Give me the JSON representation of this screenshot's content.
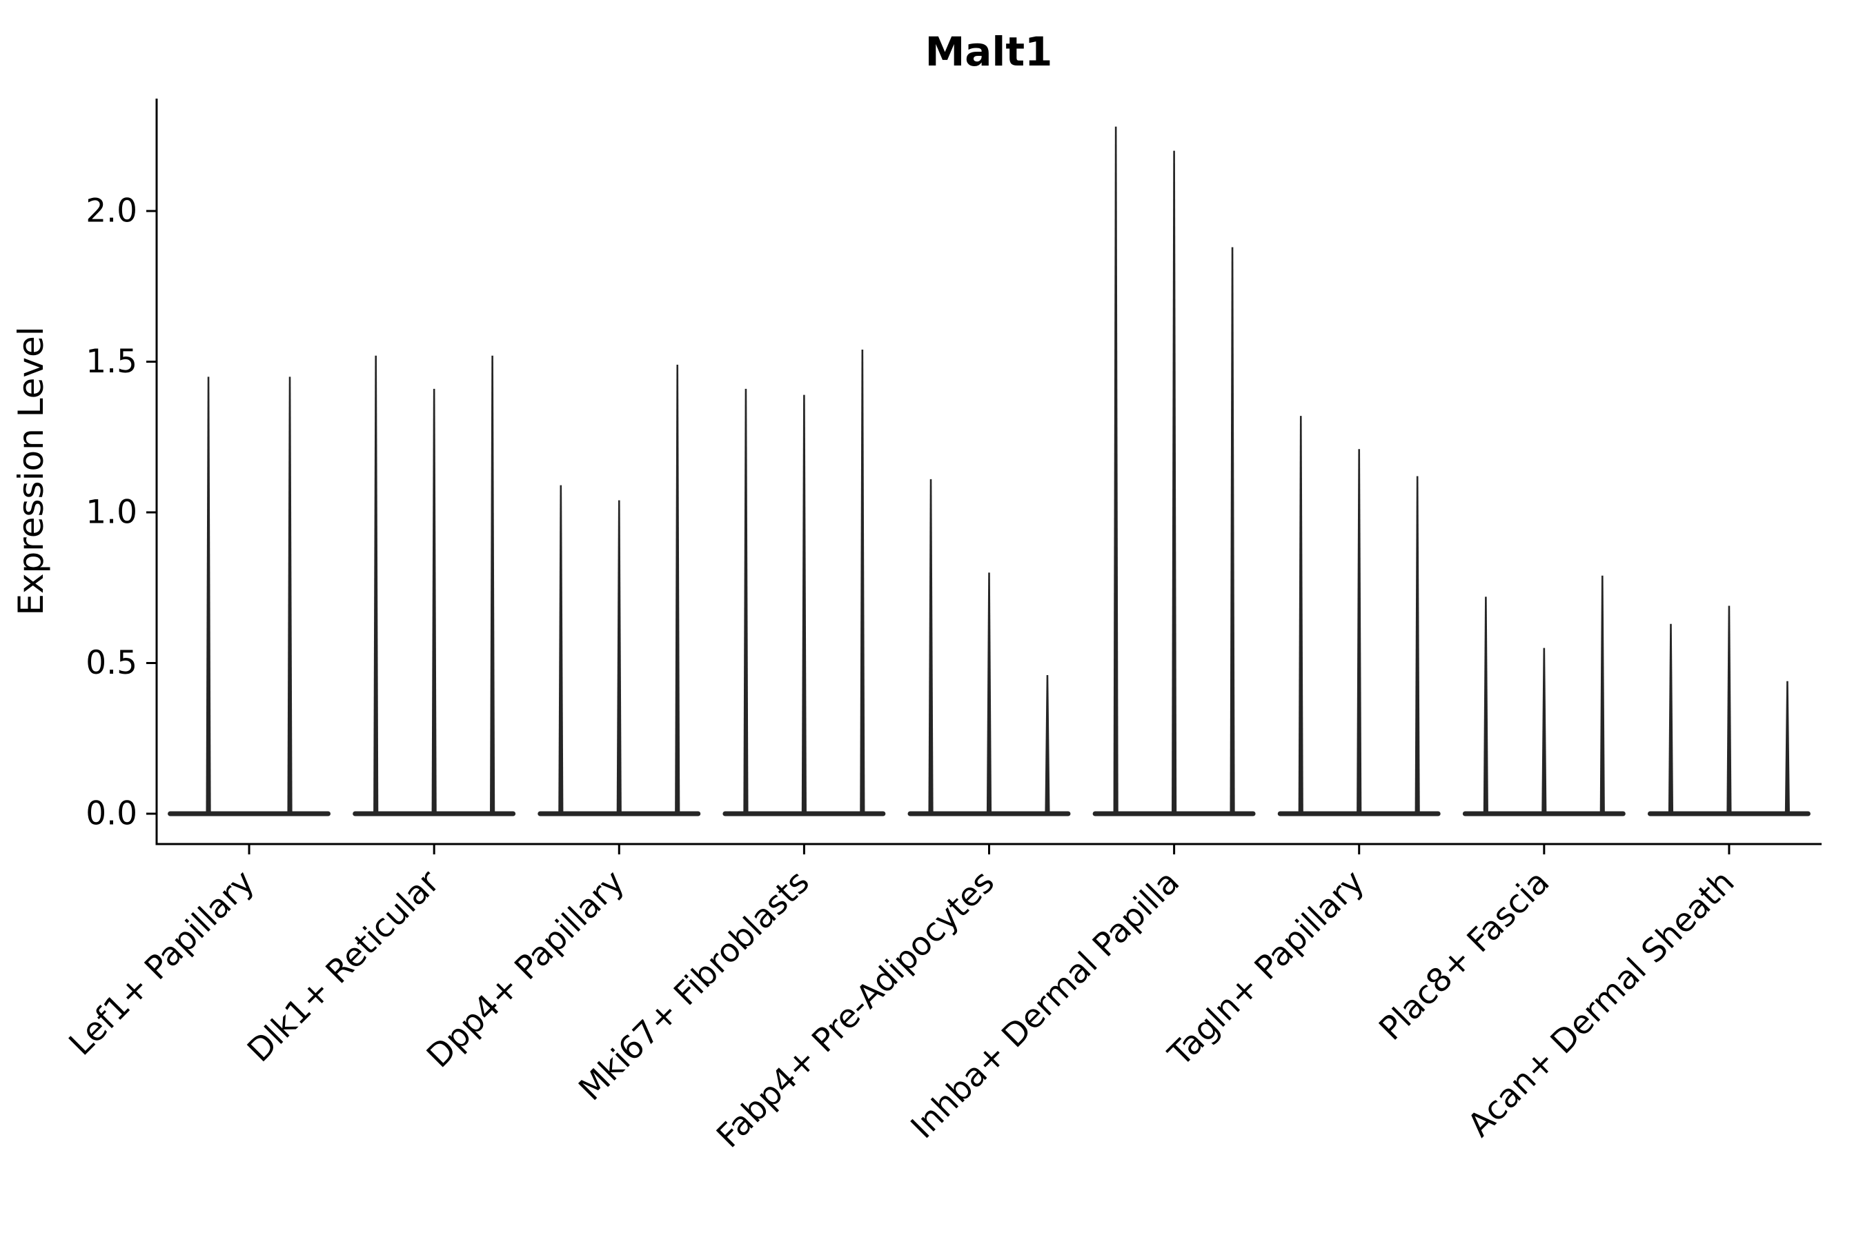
{
  "chart_data": {
    "type": "violin",
    "title": "Malt1",
    "ylabel": "Expression Level",
    "xlabel": "",
    "y_ticks": [
      0.0,
      0.5,
      1.0,
      1.5,
      2.0
    ],
    "ylim": [
      -0.1,
      2.37
    ],
    "grid": false,
    "legend": "none",
    "categories": [
      "Lef1+ Papillary",
      "Dlk1+ Reticular",
      "Dpp4+ Papillary",
      "Mki67+ Fibroblasts",
      "Fabp4+ Pre-Adipocytes",
      "Inhba+ Dermal Papilla",
      "Tagln+ Papillary",
      "Plac8+ Fascia",
      "Acan+ Dermal Sheath"
    ],
    "violin_max": [
      [
        1.45,
        1.45
      ],
      [
        1.52,
        1.41,
        1.52
      ],
      [
        1.09,
        1.04,
        1.49
      ],
      [
        1.41,
        1.39,
        1.54
      ],
      [
        1.11,
        0.8,
        0.46
      ],
      [
        2.28,
        2.2,
        1.88
      ],
      [
        1.32,
        1.21,
        1.12
      ],
      [
        0.72,
        0.55,
        0.79
      ],
      [
        0.63,
        0.69,
        0.44
      ]
    ],
    "baseline_value": 0.0,
    "colors": {
      "violin": "#262626",
      "axis": "#000000",
      "text": "#000000",
      "background": "#ffffff"
    }
  }
}
